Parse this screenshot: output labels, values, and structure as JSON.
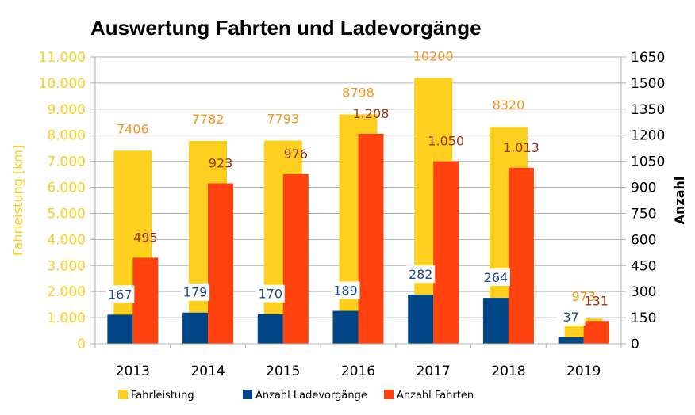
{
  "chart_data": {
    "type": "bar",
    "title": "Auswertung Fahrten und Ladevorgänge",
    "categories": [
      "2013",
      "2014",
      "2015",
      "2016",
      "2017",
      "2018",
      "2019"
    ],
    "series": [
      {
        "name": "Fahrleistung",
        "axis": "left",
        "color": "#fdd01f",
        "values": [
          7406,
          7782,
          7793,
          8798,
          10200,
          8320,
          973
        ],
        "labels": [
          "7406",
          "7782",
          "7793",
          "8798",
          "10200",
          "8320",
          "973"
        ],
        "label_color": "#f7941d"
      },
      {
        "name": "Anzahl Ladevorgänge",
        "axis": "right",
        "color": "#004586",
        "values": [
          167,
          179,
          170,
          189,
          282,
          264,
          37
        ],
        "labels": [
          "167",
          "179",
          "170",
          "189",
          "282",
          "264",
          "37"
        ],
        "label_color": "#1f4e8c"
      },
      {
        "name": "Anzahl Fahrten",
        "axis": "right",
        "color": "#ff420e",
        "values": [
          495,
          923,
          976,
          1208,
          1050,
          1013,
          131
        ],
        "labels": [
          "495",
          "923",
          "976",
          "1.208",
          "1.050",
          "1.013",
          "131"
        ],
        "label_color": "#9a3412"
      }
    ],
    "ylabel": "Fahrleistung [km]",
    "y2label": "Anzahl",
    "ylim": [
      0,
      11000
    ],
    "y2lim": [
      0,
      1650
    ],
    "yticks": [
      "0",
      "1.000",
      "2.000",
      "3.000",
      "4.000",
      "5.000",
      "6.000",
      "7.000",
      "8.000",
      "9.000",
      "10.000",
      "11.000"
    ],
    "y2ticks": [
      "0",
      "150",
      "300",
      "450",
      "600",
      "750",
      "900",
      "1050",
      "1200",
      "1350",
      "1500",
      "1650"
    ],
    "grid": true,
    "legend_position": "bottom"
  }
}
